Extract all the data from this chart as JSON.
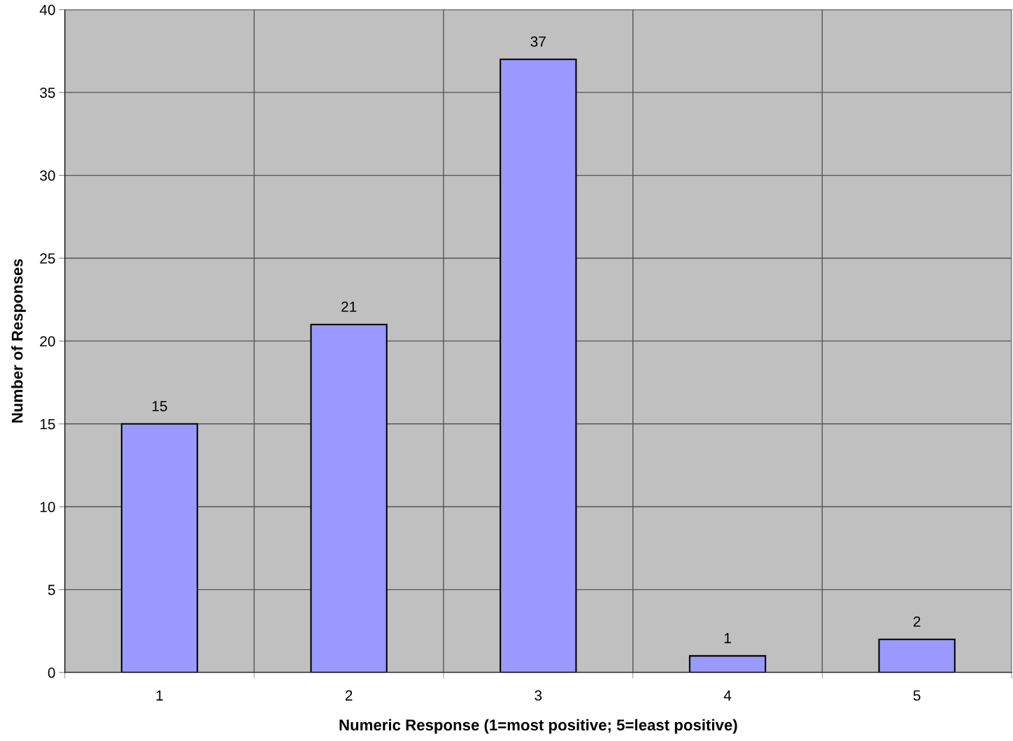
{
  "chart_data": {
    "type": "bar",
    "xlabel": "Numeric Response (1=most positive; 5=least positive)",
    "ylabel": "Number of Responses",
    "categories": [
      "1",
      "2",
      "3",
      "4",
      "5"
    ],
    "values": [
      15,
      21,
      37,
      1,
      2
    ],
    "color": "#9999ff",
    "ylim": [
      0,
      40
    ],
    "yticks": [
      0,
      5,
      10,
      15,
      20,
      25,
      30,
      35,
      40
    ],
    "grid": true,
    "data_labels": true
  }
}
